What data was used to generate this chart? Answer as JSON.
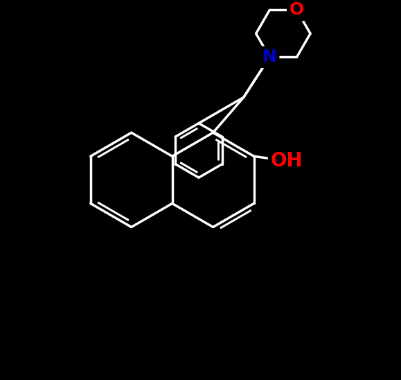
{
  "bg_color": "#000000",
  "bond_color": "#ffffff",
  "N_color": "#0000cd",
  "O_color": "#ff0000",
  "bond_width": 2.5,
  "font_size_label": 18,
  "fig_width": 5.79,
  "fig_height": 5.48,
  "dpi": 100,
  "xlim": [
    -1.0,
    8.5
  ],
  "ylim": [
    -1.5,
    8.5
  ]
}
